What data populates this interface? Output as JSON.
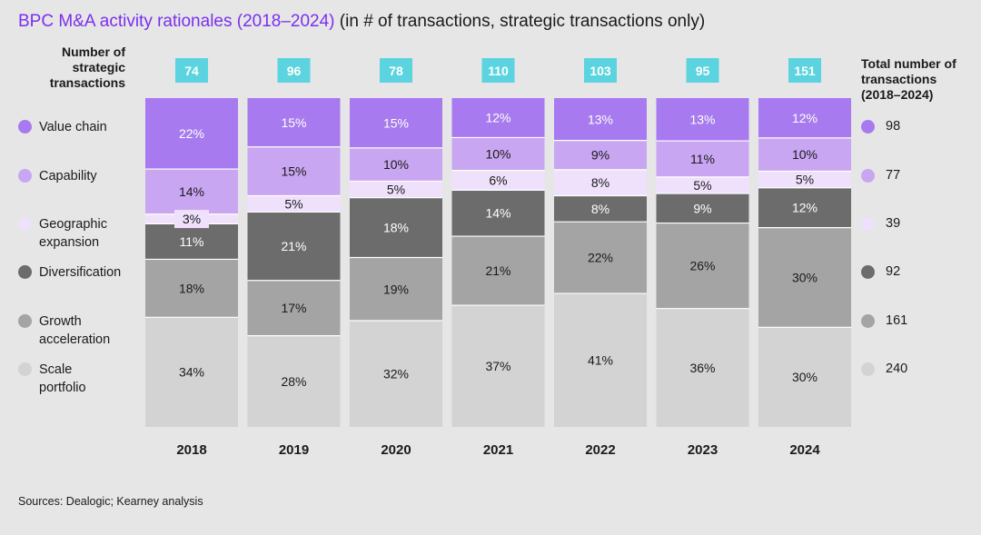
{
  "title": {
    "highlight": "BPC M&A activity rationales (2018–2024)",
    "rest": "(in # of transactions, strategic transactions only)"
  },
  "left_header": "Number of strategic transactions",
  "right_header": "Total number of transactions (2018–2024)",
  "source": "Sources: Dealogic; Kearney analysis",
  "colors": {
    "value_chain": "#a77af0",
    "capability": "#c9a6f2",
    "geographic": "#efe1fc",
    "diversification": "#6c6c6c",
    "growth": "#a4a4a4",
    "scale": "#d3d3d3",
    "count_box": "#5bd4e0"
  },
  "chart_data": {
    "type": "bar",
    "stacked": true,
    "normalized": true,
    "categories": [
      "2018",
      "2019",
      "2020",
      "2021",
      "2022",
      "2023",
      "2024"
    ],
    "strategic_transactions": [
      74,
      96,
      78,
      110,
      103,
      95,
      151
    ],
    "series": [
      {
        "name": "Scale portfolio",
        "values": [
          34,
          28,
          32,
          37,
          41,
          36,
          30
        ],
        "total": 240
      },
      {
        "name": "Growth acceleration",
        "values": [
          18,
          17,
          19,
          21,
          22,
          26,
          30
        ],
        "total": 161
      },
      {
        "name": "Diversification",
        "values": [
          11,
          21,
          18,
          14,
          8,
          9,
          12
        ],
        "total": 92
      },
      {
        "name": "Geographic expansion",
        "values": [
          3,
          5,
          5,
          6,
          8,
          5,
          5
        ],
        "total": 39
      },
      {
        "name": "Capability",
        "values": [
          14,
          15,
          10,
          10,
          9,
          11,
          10
        ],
        "total": 77
      },
      {
        "name": "Value chain",
        "values": [
          22,
          15,
          15,
          12,
          13,
          13,
          12
        ],
        "total": 98
      }
    ],
    "value_suffix": "%"
  }
}
